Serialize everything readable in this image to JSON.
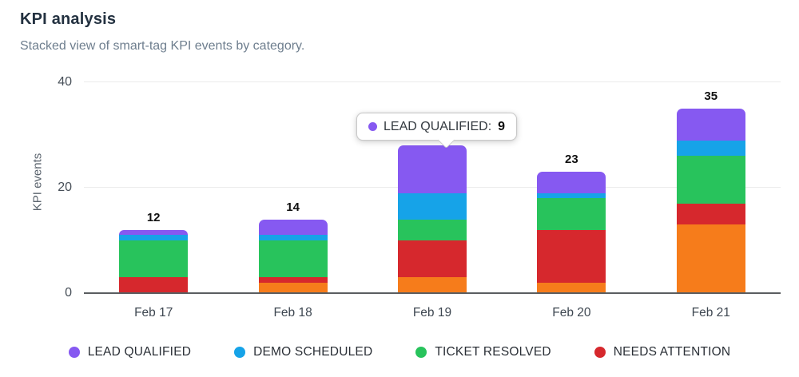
{
  "header": {
    "title": "KPI analysis",
    "subtitle": "Stacked view of smart-tag KPI events by category."
  },
  "chart_data": {
    "type": "bar",
    "stacked": true,
    "title": "KPI analysis",
    "xlabel": "",
    "ylabel": "KPI events",
    "ylim": [
      0,
      40
    ],
    "yticks": [
      0,
      20,
      40
    ],
    "grid": true,
    "legend_position": "bottom",
    "categories": [
      "Feb 17",
      "Feb 18",
      "Feb 19",
      "Feb 20",
      "Feb 21"
    ],
    "series": [
      {
        "name": "",
        "in_legend": false,
        "color": "#F67C1B",
        "values": [
          0,
          2,
          3,
          2,
          13
        ]
      },
      {
        "name": "NEEDS ATTENTION",
        "in_legend": true,
        "color": "#D6282D",
        "values": [
          3,
          1,
          7,
          10,
          4
        ]
      },
      {
        "name": "TICKET RESOLVED",
        "in_legend": true,
        "color": "#28C35C",
        "values": [
          7,
          7,
          4,
          6,
          9
        ]
      },
      {
        "name": "DEMO SCHEDULED",
        "in_legend": true,
        "color": "#16A3E8",
        "values": [
          1,
          1,
          5,
          1,
          3
        ]
      },
      {
        "name": "LEAD QUALIFIED",
        "in_legend": true,
        "color": "#8659F1",
        "values": [
          1,
          3,
          9,
          4,
          6
        ]
      }
    ],
    "bar_total_labels": [
      "12",
      "14",
      "",
      "23",
      "35"
    ],
    "bar_totals": [
      12,
      14,
      28,
      23,
      35
    ],
    "legend": [
      "LEAD QUALIFIED",
      "DEMO SCHEDULED",
      "TICKET RESOLVED",
      "NEEDS ATTENTION"
    ]
  },
  "tooltip": {
    "label": "LEAD QUALIFIED:",
    "value": "9",
    "dot_color": "#8659F1"
  }
}
